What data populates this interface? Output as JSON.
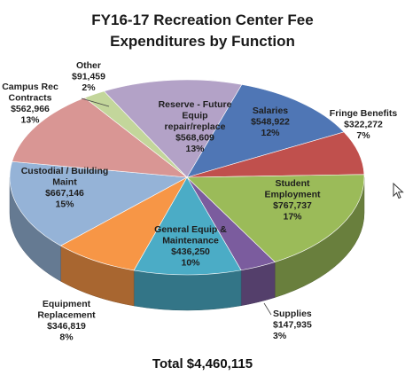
{
  "chart_data": {
    "type": "pie",
    "title_line1": "FY16-17 Recreation Center Fee",
    "title_line2": "Expenditures by Function",
    "total_label": "Total $4,460,115",
    "slices": [
      {
        "name": "Salaries",
        "value_label": "$548,922",
        "pct_label": "12%",
        "value": 548922,
        "color": "#4f76b5"
      },
      {
        "name": "Fringe Benefits",
        "value_label": "$322,272",
        "pct_label": "7%",
        "value": 322272,
        "color": "#c0504d"
      },
      {
        "name": "Student Employment",
        "value_label": "$767,737",
        "pct_label": "17%",
        "value": 767737,
        "color": "#9bbb59"
      },
      {
        "name": "Supplies",
        "value_label": "$147,935",
        "pct_label": "3%",
        "value": 147935,
        "color": "#7b5c9e"
      },
      {
        "name": "General Equip & Maintenance",
        "value_label": "$436,250",
        "pct_label": "10%",
        "value": 436250,
        "color": "#4bacc6"
      },
      {
        "name": "Equipment Replacement",
        "value_label": "$346,819",
        "pct_label": "8%",
        "value": 346819,
        "color": "#f79646"
      },
      {
        "name": "Custodial / Building Maint",
        "value_label": "$667,146",
        "pct_label": "15%",
        "value": 667146,
        "color": "#95b3d7"
      },
      {
        "name": "Campus Rec Contracts",
        "value_label": "$562,966",
        "pct_label": "13%",
        "value": 562966,
        "color": "#d99694"
      },
      {
        "name": "Other",
        "value_label": "$91,459",
        "pct_label": "2%",
        "value": 91459,
        "color": "#c3d69b"
      },
      {
        "name": "Reserve - Future Equip repair/replace",
        "value_label": "$568,609",
        "pct_label": "13%",
        "value": 568609,
        "color": "#b3a2c7"
      }
    ]
  }
}
